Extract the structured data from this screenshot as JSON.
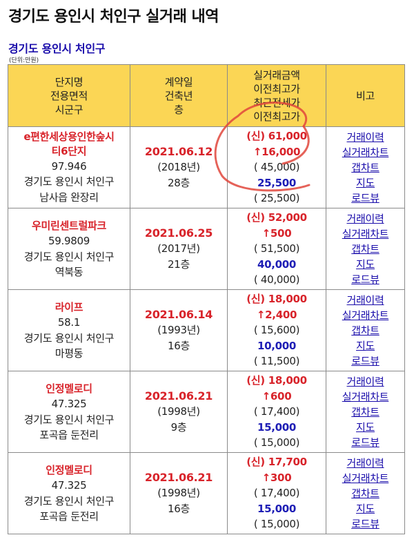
{
  "page": {
    "title": "경기도 용인시 처인구 실거래 내역",
    "region_link": "경기도 용인시 처인구",
    "unit": "(단위:만원)"
  },
  "table": {
    "headers": {
      "col1": [
        "단지명",
        "전용면적",
        "시군구"
      ],
      "col2": [
        "계약일",
        "건축년",
        "층"
      ],
      "col3": [
        "실거래금액",
        "이전최고가",
        "최근전세가",
        "이전최고가"
      ],
      "col4": [
        "비고"
      ]
    },
    "link_labels": [
      "거래이력",
      "실거래차트",
      "갭차트",
      "지도",
      "로드뷰"
    ],
    "rows": [
      {
        "name": "e편한세상용인한숲시티6단지",
        "name_lines": [
          "e편한세상용인한숲시",
          "티6단지"
        ],
        "area": "97.946",
        "region": "경기도 용인시 처인구",
        "dong": "남사읍 완장리",
        "date": "2021.06.12",
        "built": "(2018년)",
        "floor": "28층",
        "price": "(신) 61,000",
        "change": "↑16,000",
        "prev_high": "( 45,000)",
        "jeonse": "25,500",
        "jeonse_prev": "( 25,500)"
      },
      {
        "name": "우미린센트럴파크",
        "name_lines": [
          "우미린센트럴파크"
        ],
        "area": "59.9809",
        "region": "경기도 용인시 처인구",
        "dong": "역북동",
        "date": "2021.06.25",
        "built": "(2017년)",
        "floor": "21층",
        "price": "(신) 52,000",
        "change": "↑500",
        "prev_high": "( 51,500)",
        "jeonse": "40,000",
        "jeonse_prev": "( 40,000)"
      },
      {
        "name": "라이프",
        "name_lines": [
          "라이프"
        ],
        "area": "58.1",
        "region": "경기도 용인시 처인구",
        "dong": "마평동",
        "date": "2021.06.14",
        "built": "(1993년)",
        "floor": "16층",
        "price": "(신) 18,000",
        "change": "↑2,400",
        "prev_high": "( 15,600)",
        "jeonse": "10,000",
        "jeonse_prev": "( 11,500)"
      },
      {
        "name": "인정멜로디",
        "name_lines": [
          "인정멜로디"
        ],
        "area": "47.325",
        "region": "경기도 용인시 처인구",
        "dong": "포곡읍 둔전리",
        "date": "2021.06.21",
        "built": "(1998년)",
        "floor": "9층",
        "price": "(신) 18,000",
        "change": "↑600",
        "prev_high": "( 17,400)",
        "jeonse": "15,000",
        "jeonse_prev": "( 15,000)"
      },
      {
        "name": "인정멜로디",
        "name_lines": [
          "인정멜로디"
        ],
        "area": "47.325",
        "region": "경기도 용인시 처인구",
        "dong": "포곡읍 둔전리",
        "date": "2021.06.21",
        "built": "(1998년)",
        "floor": "16층",
        "price": "(신) 17,700",
        "change": "↑300",
        "prev_high": "( 17,400)",
        "jeonse": "15,000",
        "jeonse_prev": "( 15,000)"
      }
    ]
  },
  "colors": {
    "header_bg": "#fbd655",
    "accent_red": "#d8232a",
    "jeonse_blue": "#1d1db5",
    "link_blue": "#1a0dab",
    "annotation_red": "#e0463c"
  }
}
